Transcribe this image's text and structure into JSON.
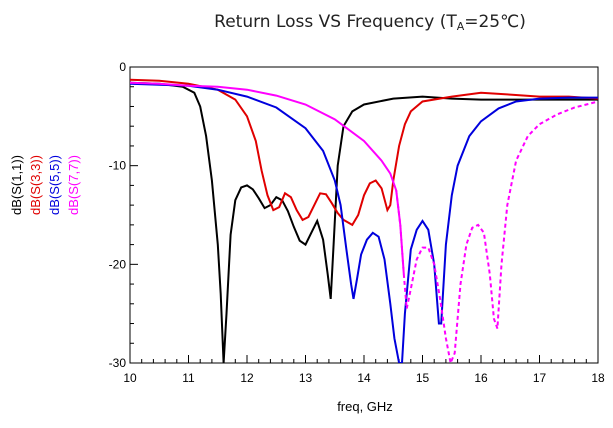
{
  "chart_data": {
    "type": "line",
    "title": {
      "main": "Return Loss VS Frequency (T",
      "sub": "A",
      "tail": "=25℃)"
    },
    "xlabel": "freq, GHz",
    "ylabel": "",
    "xlim": [
      10,
      18
    ],
    "ylim": [
      -30,
      0
    ],
    "x_ticks": [
      10,
      11,
      12,
      13,
      14,
      15,
      16,
      17,
      18
    ],
    "y_ticks": [
      0,
      -10,
      -20,
      -30
    ],
    "grid": false,
    "legend_position": "left, rotated vertical",
    "series": [
      {
        "name": "dB(S(1,1))",
        "color": "#000000",
        "points": [
          [
            10.0,
            -1.6
          ],
          [
            10.5,
            -1.7
          ],
          [
            10.9,
            -2.0
          ],
          [
            11.1,
            -2.6
          ],
          [
            11.2,
            -4.0
          ],
          [
            11.3,
            -7.0
          ],
          [
            11.4,
            -11.5
          ],
          [
            11.5,
            -18.0
          ],
          [
            11.55,
            -23.0
          ],
          [
            11.6,
            -30.0
          ],
          [
            11.65,
            -25.0
          ],
          [
            11.72,
            -17.0
          ],
          [
            11.8,
            -13.5
          ],
          [
            11.9,
            -12.2
          ],
          [
            12.0,
            -12.0
          ],
          [
            12.1,
            -12.4
          ],
          [
            12.2,
            -13.3
          ],
          [
            12.3,
            -14.3
          ],
          [
            12.4,
            -14.0
          ],
          [
            12.5,
            -13.2
          ],
          [
            12.6,
            -13.5
          ],
          [
            12.7,
            -14.6
          ],
          [
            12.8,
            -16.2
          ],
          [
            12.9,
            -17.6
          ],
          [
            13.0,
            -18.0
          ],
          [
            13.1,
            -16.8
          ],
          [
            13.2,
            -15.6
          ],
          [
            13.3,
            -17.5
          ],
          [
            13.38,
            -21.0
          ],
          [
            13.43,
            -23.5
          ],
          [
            13.48,
            -18.0
          ],
          [
            13.55,
            -10.0
          ],
          [
            13.65,
            -6.0
          ],
          [
            13.8,
            -4.5
          ],
          [
            14.0,
            -3.8
          ],
          [
            14.5,
            -3.2
          ],
          [
            15.0,
            -3.0
          ],
          [
            15.5,
            -3.2
          ],
          [
            16.0,
            -3.3
          ],
          [
            16.5,
            -3.3
          ],
          [
            17.0,
            -3.3
          ],
          [
            17.5,
            -3.3
          ],
          [
            18.0,
            -3.3
          ]
        ]
      },
      {
        "name": "dB(S(3,3))",
        "color": "#e00000",
        "points": [
          [
            10.0,
            -1.3
          ],
          [
            10.5,
            -1.4
          ],
          [
            11.0,
            -1.7
          ],
          [
            11.5,
            -2.3
          ],
          [
            11.8,
            -3.3
          ],
          [
            12.0,
            -5.0
          ],
          [
            12.15,
            -7.5
          ],
          [
            12.25,
            -10.5
          ],
          [
            12.35,
            -13.0
          ],
          [
            12.45,
            -14.5
          ],
          [
            12.55,
            -14.2
          ],
          [
            12.65,
            -12.8
          ],
          [
            12.75,
            -13.2
          ],
          [
            12.85,
            -14.5
          ],
          [
            12.95,
            -15.5
          ],
          [
            13.05,
            -15.2
          ],
          [
            13.15,
            -14.0
          ],
          [
            13.25,
            -12.8
          ],
          [
            13.35,
            -12.9
          ],
          [
            13.45,
            -13.8
          ],
          [
            13.55,
            -14.8
          ],
          [
            13.65,
            -15.5
          ],
          [
            13.8,
            -16.0
          ],
          [
            13.9,
            -15.0
          ],
          [
            14.0,
            -13.0
          ],
          [
            14.1,
            -11.8
          ],
          [
            14.2,
            -11.5
          ],
          [
            14.3,
            -12.3
          ],
          [
            14.4,
            -14.5
          ],
          [
            14.45,
            -14.0
          ],
          [
            14.5,
            -11.5
          ],
          [
            14.6,
            -8.0
          ],
          [
            14.7,
            -5.8
          ],
          [
            14.8,
            -4.5
          ],
          [
            15.0,
            -3.5
          ],
          [
            15.5,
            -3.0
          ],
          [
            16.0,
            -2.6
          ],
          [
            16.5,
            -2.8
          ],
          [
            17.0,
            -3.0
          ],
          [
            17.5,
            -3.0
          ],
          [
            18.0,
            -3.2
          ]
        ]
      },
      {
        "name": "dB(S(5,5))",
        "color": "#0000dd",
        "points": [
          [
            10.0,
            -1.7
          ],
          [
            10.5,
            -1.8
          ],
          [
            11.0,
            -1.9
          ],
          [
            11.5,
            -2.3
          ],
          [
            12.0,
            -3.0
          ],
          [
            12.5,
            -4.1
          ],
          [
            13.0,
            -6.2
          ],
          [
            13.3,
            -8.5
          ],
          [
            13.5,
            -11.5
          ],
          [
            13.6,
            -14.0
          ],
          [
            13.7,
            -18.5
          ],
          [
            13.78,
            -22.0
          ],
          [
            13.82,
            -23.5
          ],
          [
            13.88,
            -21.5
          ],
          [
            13.95,
            -19.0
          ],
          [
            14.05,
            -17.5
          ],
          [
            14.15,
            -16.8
          ],
          [
            14.25,
            -17.2
          ],
          [
            14.35,
            -19.5
          ],
          [
            14.45,
            -24.0
          ],
          [
            14.52,
            -27.5
          ],
          [
            14.6,
            -30.0
          ],
          [
            14.65,
            -30.0
          ],
          [
            14.7,
            -25.0
          ],
          [
            14.8,
            -18.5
          ],
          [
            14.9,
            -16.5
          ],
          [
            15.0,
            -15.6
          ],
          [
            15.1,
            -16.5
          ],
          [
            15.2,
            -20.0
          ],
          [
            15.28,
            -26.0
          ],
          [
            15.32,
            -26.0
          ],
          [
            15.4,
            -18.0
          ],
          [
            15.5,
            -13.0
          ],
          [
            15.6,
            -10.0
          ],
          [
            15.8,
            -7.0
          ],
          [
            16.0,
            -5.5
          ],
          [
            16.3,
            -4.2
          ],
          [
            16.6,
            -3.5
          ],
          [
            17.0,
            -3.2
          ],
          [
            17.5,
            -3.1
          ],
          [
            18.0,
            -3.1
          ]
        ]
      },
      {
        "name": "dB(S(7,7))",
        "color": "#ff00ff",
        "points": [
          [
            10.0,
            -1.6
          ],
          [
            10.5,
            -1.7
          ],
          [
            11.0,
            -1.9
          ],
          [
            11.5,
            -2.0
          ],
          [
            12.0,
            -2.3
          ],
          [
            12.5,
            -2.9
          ],
          [
            13.0,
            -3.8
          ],
          [
            13.5,
            -5.3
          ],
          [
            14.0,
            -7.5
          ],
          [
            14.3,
            -9.5
          ],
          [
            14.45,
            -10.8
          ],
          [
            14.55,
            -12.5
          ],
          [
            14.62,
            -16.0
          ],
          [
            14.68,
            -21.0
          ],
          [
            14.73,
            -24.5
          ],
          [
            14.8,
            -22.5
          ],
          [
            14.9,
            -19.5
          ],
          [
            15.0,
            -18.3
          ],
          [
            15.1,
            -18.3
          ],
          [
            15.2,
            -20.0
          ],
          [
            15.3,
            -23.5
          ],
          [
            15.4,
            -27.5
          ],
          [
            15.48,
            -30.0
          ],
          [
            15.55,
            -29.0
          ],
          [
            15.65,
            -22.0
          ],
          [
            15.75,
            -18.0
          ],
          [
            15.85,
            -16.3
          ],
          [
            15.95,
            -16.0
          ],
          [
            16.05,
            -16.8
          ],
          [
            16.15,
            -21.0
          ],
          [
            16.22,
            -25.5
          ],
          [
            16.28,
            -26.5
          ],
          [
            16.35,
            -20.0
          ],
          [
            16.45,
            -14.0
          ],
          [
            16.6,
            -9.5
          ],
          [
            16.8,
            -7.0
          ],
          [
            17.0,
            -5.8
          ],
          [
            17.3,
            -4.8
          ],
          [
            17.6,
            -4.1
          ],
          [
            18.0,
            -3.5
          ]
        ],
        "solid_until": 14.7
      }
    ]
  }
}
